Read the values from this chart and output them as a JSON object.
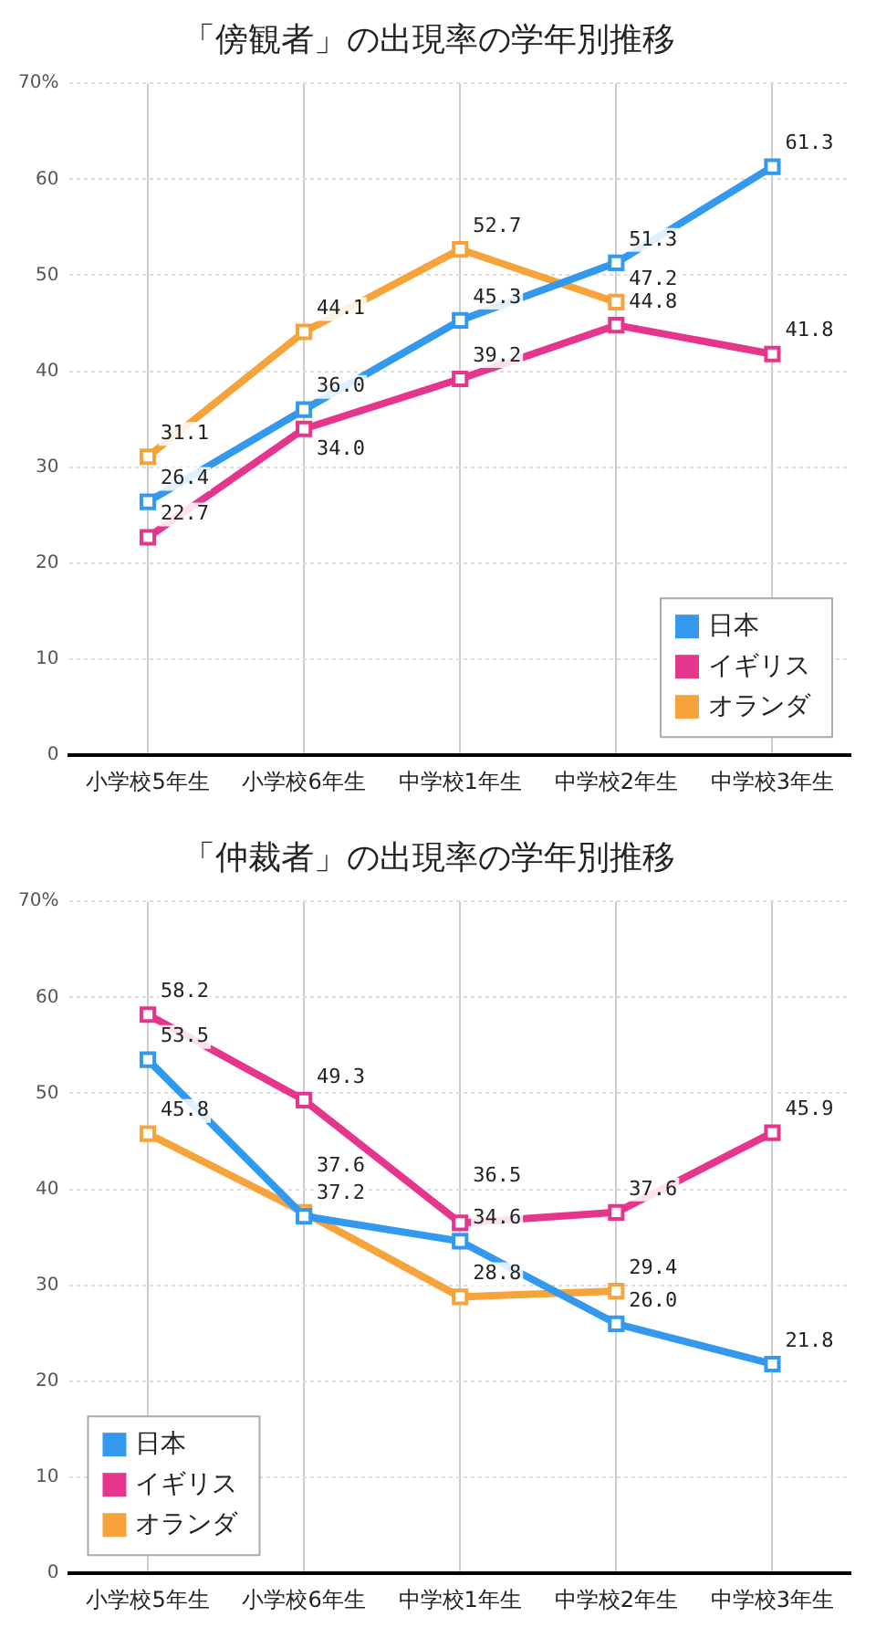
{
  "chart_data": [
    {
      "type": "line",
      "title": "「傍観者」の出現率の学年別推移",
      "categories": [
        "小学校5年生",
        "小学校6年生",
        "中学校1年生",
        "中学校2年生",
        "中学校3年生"
      ],
      "series": [
        {
          "name": "日本",
          "color": "#3399ee",
          "values": [
            26.4,
            36.0,
            45.3,
            51.3,
            61.3
          ],
          "value_labels": [
            "26.4",
            "36.0",
            "45.3",
            "51.3",
            "61.3"
          ]
        },
        {
          "name": "イギリス",
          "color": "#e6358c",
          "values": [
            22.7,
            34.0,
            39.2,
            44.8,
            41.8
          ],
          "value_labels": [
            "22.7",
            "34.0",
            "39.2",
            "44.8",
            "41.8"
          ]
        },
        {
          "name": "オランダ",
          "color": "#f5a33a",
          "values": [
            31.1,
            44.1,
            52.7,
            47.2,
            null
          ],
          "value_labels": [
            "31.1",
            "44.1",
            "52.7",
            "47.2",
            null
          ]
        }
      ],
      "ylim": [
        0,
        70
      ],
      "yticks": [
        0,
        10,
        20,
        30,
        40,
        50,
        60,
        {
          "value": 70,
          "label": "70%"
        }
      ],
      "grid": true,
      "legend": "bottom right",
      "marker": "square",
      "line_style": "solid"
    },
    {
      "type": "line",
      "title": "「仲裁者」の出現率の学年別推移",
      "categories": [
        "小学校5年生",
        "小学校6年生",
        "中学校1年生",
        "中学校2年生",
        "中学校3年生"
      ],
      "series": [
        {
          "name": "日本",
          "color": "#3399ee",
          "values": [
            53.5,
            37.2,
            34.6,
            26.0,
            21.8
          ],
          "value_labels": [
            "53.5",
            "37.2",
            "34.6",
            "26.0",
            "21.8"
          ]
        },
        {
          "name": "イギリス",
          "color": "#e6358c",
          "values": [
            58.2,
            49.3,
            36.5,
            37.6,
            45.9
          ],
          "value_labels": [
            "58.2",
            "49.3",
            "36.5",
            "37.6",
            "45.9"
          ]
        },
        {
          "name": "オランダ",
          "color": "#f5a33a",
          "values": [
            45.8,
            37.6,
            28.8,
            29.4,
            null
          ],
          "value_labels": [
            "45.8",
            "37.6",
            "28.8",
            "29.4",
            null
          ]
        }
      ],
      "ylim": [
        0,
        70
      ],
      "yticks": [
        0,
        10,
        20,
        30,
        40,
        50,
        60,
        {
          "value": 70,
          "label": "70%"
        }
      ],
      "grid": true,
      "legend": "bottom left",
      "marker": "square",
      "line_style": "solid"
    }
  ]
}
